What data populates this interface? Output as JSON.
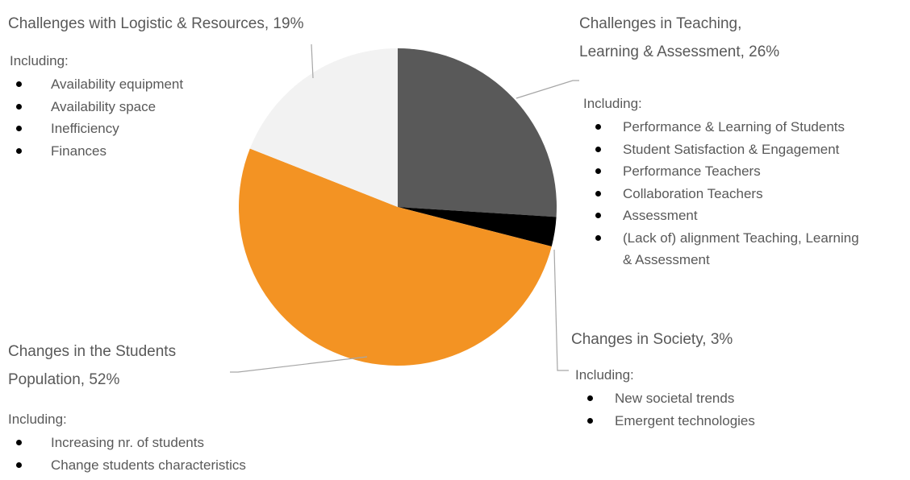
{
  "chart_data": {
    "type": "pie",
    "categories": [
      "Challenges in Teaching, Learning & Assessment, 26%",
      "Changes in Society, 3%",
      "Changes in the Students Population, 52%",
      "Challenges with Logistic & Resources, 19%"
    ],
    "values": [
      26,
      3,
      52,
      19
    ],
    "colors": [
      "#595959",
      "#000000",
      "#f39323",
      "#f2f2f2"
    ],
    "details": [
      {
        "heading": "Including:",
        "items": [
          "Performance & Learning of Students",
          "Student Satisfaction & Engagement",
          "Performance Teachers",
          "Collaboration Teachers",
          "Assessment",
          "(Lack of) alignment Teaching, Learning & Assessment"
        ]
      },
      {
        "heading": "Including:",
        "items": [
          "New societal trends",
          "Emergent technologies"
        ]
      },
      {
        "heading": "Including:",
        "items": [
          "Increasing nr. of students",
          "Change students characteristics"
        ]
      },
      {
        "heading": "Including:",
        "items": [
          "Availability equipment",
          "Availability space",
          "Inefficiency",
          "Finances"
        ]
      }
    ]
  }
}
